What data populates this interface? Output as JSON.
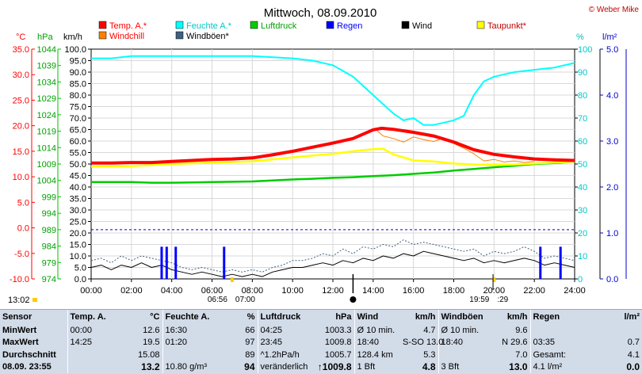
{
  "chart_data": {
    "type": "line",
    "title": "Mittwoch, 08.09.2010",
    "copyright": "© Weber Mike",
    "legend": [
      {
        "name": "Temp. A.*",
        "color": "#ff0000"
      },
      {
        "name": "Feuchte A.*",
        "color": "#00ffff"
      },
      {
        "name": "Luftdruck",
        "color": "#00cc00"
      },
      {
        "name": "Regen",
        "color": "#0000ff"
      },
      {
        "name": "Wind",
        "color": "#000000"
      },
      {
        "name": "Taupunkt*",
        "color": "#ffff00"
      },
      {
        "name": "Windchill",
        "color": "#ff8000"
      },
      {
        "name": "Windböen*",
        "color": "#406080"
      }
    ],
    "axes": {
      "temp": {
        "unit": "°C",
        "min": -10,
        "max": 35,
        "ticks": [
          "35.0",
          "30.0",
          "25.0",
          "20.0",
          "15.0",
          "10.0",
          "5.0",
          "0.0",
          "-5.0",
          "-10.0"
        ]
      },
      "pressure": {
        "unit": "hPa",
        "min": 974,
        "max": 1044,
        "ticks": [
          "1044",
          "1039",
          "1034",
          "1029",
          "1024",
          "1019",
          "1014",
          "1009",
          "1004",
          "999",
          "994",
          "989",
          "984",
          "979",
          "974"
        ]
      },
      "wind": {
        "unit": "km/h",
        "min": 0,
        "max": 100,
        "ticks": [
          "100.0",
          "95.0",
          "90.0",
          "85.0",
          "80.0",
          "75.0",
          "70.0",
          "65.0",
          "60.0",
          "55.0",
          "50.0",
          "45.0",
          "40.0",
          "35.0",
          "30.0",
          "25.0",
          "20.0",
          "15.0",
          "10.0",
          "5.0",
          "0.0"
        ]
      },
      "humidity": {
        "unit": "%",
        "min": 0,
        "max": 100,
        "ticks": [
          "100",
          "90",
          "80",
          "70",
          "60",
          "50",
          "40",
          "30",
          "20",
          "10",
          "0"
        ]
      },
      "rain": {
        "unit": "l/m²",
        "min": 0,
        "max": 5,
        "ticks": [
          "5.0",
          "4.0",
          "3.0",
          "2.0",
          "1.0",
          "0.0"
        ]
      }
    },
    "x": [
      "00:00",
      "02:00",
      "04:00",
      "06:00",
      "08:00",
      "10:00",
      "12:00",
      "14:00",
      "16:00",
      "18:00",
      "20:00",
      "22:00",
      "24:00"
    ],
    "x_hours": [
      0,
      2,
      4,
      6,
      8,
      10,
      12,
      14,
      16,
      18,
      20,
      22,
      24
    ],
    "sun": {
      "sunrise": "06:56",
      "sunrise_noon": "07:00",
      "sunset": "19:59",
      "sunset_min": ":29"
    },
    "time_now": "13:02",
    "series": [
      {
        "name": "Temp. A.*",
        "axis": "temp",
        "color": "#ff0000",
        "points": [
          [
            0,
            12.7
          ],
          [
            1,
            12.7
          ],
          [
            2,
            12.8
          ],
          [
            3,
            12.8
          ],
          [
            4,
            13.0
          ],
          [
            5,
            13.2
          ],
          [
            6,
            13.4
          ],
          [
            7,
            13.5
          ],
          [
            8,
            13.7
          ],
          [
            9,
            14.3
          ],
          [
            10,
            15.0
          ],
          [
            11,
            15.8
          ],
          [
            12,
            16.6
          ],
          [
            13,
            17.5
          ],
          [
            14,
            19.2
          ],
          [
            14.42,
            19.5
          ],
          [
            15,
            19.3
          ],
          [
            16,
            18.7
          ],
          [
            17,
            18.0
          ],
          [
            18,
            16.8
          ],
          [
            19,
            15.3
          ],
          [
            20,
            14.4
          ],
          [
            21,
            13.9
          ],
          [
            22,
            13.5
          ],
          [
            23,
            13.3
          ],
          [
            24,
            13.2
          ]
        ]
      },
      {
        "name": "Feuchte A.*",
        "axis": "humidity",
        "color": "#00ffff",
        "points": [
          [
            0,
            96
          ],
          [
            1,
            96
          ],
          [
            2,
            97
          ],
          [
            4,
            97
          ],
          [
            8,
            97
          ],
          [
            10,
            96
          ],
          [
            11,
            95
          ],
          [
            12,
            93
          ],
          [
            13,
            88
          ],
          [
            14,
            80
          ],
          [
            15,
            72
          ],
          [
            15.5,
            69
          ],
          [
            16,
            70
          ],
          [
            16.5,
            67
          ],
          [
            17,
            67
          ],
          [
            17.5,
            68
          ],
          [
            18,
            69
          ],
          [
            18.5,
            71
          ],
          [
            19,
            80
          ],
          [
            19.5,
            86
          ],
          [
            20,
            88
          ],
          [
            21,
            90
          ],
          [
            22,
            91
          ],
          [
            23,
            92
          ],
          [
            24,
            94
          ]
        ]
      },
      {
        "name": "Luftdruck",
        "axis": "pressure",
        "color": "#00cc00",
        "points": [
          [
            0,
            1003.5
          ],
          [
            1,
            1003.5
          ],
          [
            2,
            1003.5
          ],
          [
            3,
            1003.3
          ],
          [
            4,
            1003.3
          ],
          [
            5,
            1003.4
          ],
          [
            6,
            1003.5
          ],
          [
            7,
            1003.6
          ],
          [
            8,
            1003.7
          ],
          [
            9,
            1004.0
          ],
          [
            10,
            1004.3
          ],
          [
            11,
            1004.5
          ],
          [
            12,
            1004.8
          ],
          [
            13,
            1005.0
          ],
          [
            14,
            1005.3
          ],
          [
            15,
            1005.6
          ],
          [
            16,
            1006.0
          ],
          [
            17,
            1006.4
          ],
          [
            18,
            1007.0
          ],
          [
            19,
            1007.5
          ],
          [
            20,
            1008.0
          ],
          [
            21,
            1008.5
          ],
          [
            22,
            1009.0
          ],
          [
            23,
            1009.3
          ],
          [
            24,
            1009.8
          ]
        ]
      },
      {
        "name": "Taupunkt*",
        "axis": "temp",
        "color": "#ffff00",
        "points": [
          [
            0,
            12.0
          ],
          [
            2,
            12.1
          ],
          [
            4,
            12.5
          ],
          [
            6,
            12.8
          ],
          [
            8,
            13.0
          ],
          [
            10,
            13.8
          ],
          [
            12,
            14.5
          ],
          [
            13,
            15.0
          ],
          [
            14,
            15.4
          ],
          [
            14.5,
            15.5
          ],
          [
            15,
            14.4
          ],
          [
            16,
            13.2
          ],
          [
            17,
            13.0
          ],
          [
            18,
            12.6
          ],
          [
            19,
            12.4
          ],
          [
            20,
            12.3
          ],
          [
            21,
            12.4
          ],
          [
            22,
            12.6
          ],
          [
            23,
            12.8
          ],
          [
            24,
            13.0
          ]
        ]
      },
      {
        "name": "Windchill",
        "axis": "temp",
        "color": "#ff8000",
        "points": [
          [
            14.2,
            19.0
          ],
          [
            14.5,
            18.0
          ],
          [
            15,
            17.5
          ],
          [
            15.5,
            16.8
          ],
          [
            16,
            17.8
          ],
          [
            16.5,
            17.3
          ],
          [
            17,
            16.9
          ],
          [
            17.5,
            17.6
          ],
          [
            18,
            16.5
          ],
          [
            18.5,
            15.6
          ],
          [
            19,
            14.5
          ],
          [
            19.5,
            13.1
          ],
          [
            20,
            13.4
          ],
          [
            20.5,
            12.9
          ],
          [
            21,
            13.1
          ],
          [
            21.5,
            12.8
          ],
          [
            22,
            13.0
          ]
        ]
      },
      {
        "name": "Wind",
        "axis": "wind",
        "color": "#000000",
        "points": [
          [
            0,
            5
          ],
          [
            0.5,
            6
          ],
          [
            1,
            4
          ],
          [
            1.5,
            6
          ],
          [
            2,
            5
          ],
          [
            2.5,
            7
          ],
          [
            3,
            5
          ],
          [
            3.5,
            6
          ],
          [
            4,
            4
          ],
          [
            4.5,
            3
          ],
          [
            5,
            2
          ],
          [
            5.5,
            3
          ],
          [
            6,
            2
          ],
          [
            6.5,
            1
          ],
          [
            7,
            2
          ],
          [
            7.5,
            1
          ],
          [
            8,
            2
          ],
          [
            8.5,
            1
          ],
          [
            9,
            3
          ],
          [
            9.5,
            4
          ],
          [
            10,
            5
          ],
          [
            10.5,
            5
          ],
          [
            11,
            6
          ],
          [
            11.5,
            7
          ],
          [
            12,
            6
          ],
          [
            12.5,
            8
          ],
          [
            13,
            7
          ],
          [
            13.5,
            9
          ],
          [
            14,
            8
          ],
          [
            14.5,
            10
          ],
          [
            15,
            9
          ],
          [
            15.5,
            11
          ],
          [
            16,
            10
          ],
          [
            16.5,
            12
          ],
          [
            17,
            11
          ],
          [
            17.5,
            10
          ],
          [
            18,
            9
          ],
          [
            18.5,
            8
          ],
          [
            19,
            9
          ],
          [
            19.5,
            7
          ],
          [
            20,
            8
          ],
          [
            20.5,
            7
          ],
          [
            21,
            8
          ],
          [
            21.5,
            9
          ],
          [
            22,
            8
          ],
          [
            22.5,
            6
          ],
          [
            23,
            7
          ],
          [
            23.5,
            6
          ],
          [
            24,
            5
          ]
        ]
      },
      {
        "name": "Windböen*",
        "axis": "wind",
        "color": "#406080",
        "points": [
          [
            0,
            8
          ],
          [
            0.5,
            9
          ],
          [
            1,
            7
          ],
          [
            1.5,
            10
          ],
          [
            2,
            8
          ],
          [
            2.5,
            10
          ],
          [
            3,
            9
          ],
          [
            3.5,
            8
          ],
          [
            4,
            7
          ],
          [
            4.5,
            5
          ],
          [
            5,
            4
          ],
          [
            5.5,
            5
          ],
          [
            6,
            4
          ],
          [
            6.5,
            3
          ],
          [
            7,
            4
          ],
          [
            7.5,
            3
          ],
          [
            8,
            4
          ],
          [
            8.5,
            3
          ],
          [
            9,
            5
          ],
          [
            9.5,
            6
          ],
          [
            10,
            8
          ],
          [
            10.5,
            8
          ],
          [
            11,
            9
          ],
          [
            11.5,
            11
          ],
          [
            12,
            10
          ],
          [
            12.5,
            13
          ],
          [
            13,
            11
          ],
          [
            13.5,
            14
          ],
          [
            14,
            13
          ],
          [
            14.5,
            15
          ],
          [
            15,
            14
          ],
          [
            15.5,
            17
          ],
          [
            16,
            15
          ],
          [
            16.5,
            16
          ],
          [
            17,
            15
          ],
          [
            17.5,
            14
          ],
          [
            18,
            13
          ],
          [
            18.5,
            12
          ],
          [
            19,
            13
          ],
          [
            19.5,
            10
          ],
          [
            20,
            12
          ],
          [
            20.5,
            11
          ],
          [
            21,
            12
          ],
          [
            21.5,
            14
          ],
          [
            22,
            12
          ],
          [
            22.5,
            9
          ],
          [
            23,
            10
          ],
          [
            23.5,
            9
          ],
          [
            24,
            8
          ]
        ]
      }
    ],
    "rain_bars": [
      {
        "hour": 3.5,
        "value": 0.7
      },
      {
        "hour": 3.75,
        "value": 0.7
      },
      {
        "hour": 4.2,
        "value": 0.7
      },
      {
        "hour": 6.6,
        "value": 0.7
      },
      {
        "hour": 22.3,
        "value": 0.7
      },
      {
        "hour": 23.3,
        "value": 0.7
      }
    ],
    "reference_line_hpa": 989
  },
  "stats": {
    "header": {
      "sensor": "Sensor",
      "temp": "Temp. A.",
      "temp_unit": "°C",
      "feuchte": "Feuchte A.",
      "feuchte_unit": "%",
      "luftdruck": "Luftdruck",
      "luftdruck_unit": "hPa",
      "wind": "Wind",
      "wind_unit": "km/h",
      "windboen": "Windböen",
      "windboen_unit": "km/h",
      "regen": "Regen",
      "regen_unit": "l/m²"
    },
    "rows": [
      {
        "label": "MinWert",
        "t_time": "00:00",
        "t_val": "12.6",
        "f_time": "16:30",
        "f_val": "66",
        "p_time": "04:25",
        "p_val": "1003.3",
        "w_time": "Ø 10 min.",
        "w_val": "4.7",
        "g_time": "Ø 10 min.",
        "g_val": "9.6",
        "r_time": "",
        "r_val": ""
      },
      {
        "label": "MaxWert",
        "t_time": "14:25",
        "t_val": "19.5",
        "f_time": "01:20",
        "f_val": "97",
        "p_time": "23:45",
        "p_val": "1009.8",
        "w_time": "18:40",
        "w_val": "S-SO 13.0",
        "g_time": "18:40",
        "g_val": "N 29.6",
        "r_time": "03:35",
        "r_val": "0.7"
      },
      {
        "label": "Durchschnitt",
        "t_time": "",
        "t_val": "15.08",
        "f_time": "",
        "f_val": "89",
        "p_time": "^1.2hPa/h",
        "p_val": "1005.7",
        "w_time": "128.4 km",
        "w_val": "5.3",
        "g_time": "",
        "g_val": "7.0",
        "r_time": "Gesamt:",
        "r_val": "4.1"
      },
      {
        "label": "08.09. 23:55",
        "t_time": "",
        "t_val": "13.2",
        "f_time": "10.80 g/m³",
        "f_val": "94",
        "p_time": "veränderlich",
        "p_val": "↑1009.8",
        "w_time": "1 Bft",
        "w_val": "4.8",
        "g_time": "3 Bft",
        "g_val": "13.0",
        "r_time": "4.1 l/m²",
        "r_val": "0.0"
      }
    ]
  }
}
